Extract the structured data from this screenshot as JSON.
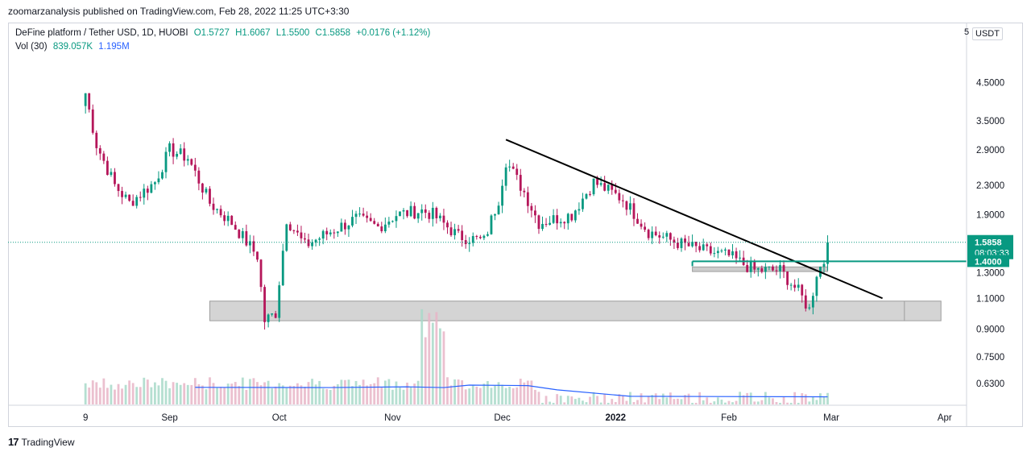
{
  "header": {
    "publisher": "zoomarzanalysis published on TradingView.com, Feb 28, 2022 11:25 UTC+3:30"
  },
  "legend": {
    "symbol": "DeFine platform / Tether USD, 1D, HUOBI",
    "open": "O1.5727",
    "high": "H1.6067",
    "low": "L1.5500",
    "close": "C1.5858",
    "change": "+0.0176 (+1.12%)",
    "vol_label": "Vol (30)",
    "vol_value": "839.057K",
    "vol_ma": "1.195M"
  },
  "currency_button": "USDT",
  "currency_prefix": "5",
  "footer": {
    "brand": "TradingView",
    "logo": "tradingview-logo-icon"
  },
  "colors": {
    "up": "#089981",
    "down": "#b5165a",
    "trendline": "#000000",
    "zone": "#cccccc",
    "resistance": "#089981",
    "vol_ma": "#2962ff"
  },
  "chart_data": {
    "type": "candlestick",
    "y_scale": "log",
    "ylim": [
      0.55,
      5.2
    ],
    "y_ticks": [
      "4.5000",
      "3.5000",
      "2.9000",
      "2.3000",
      "1.9000",
      "1.3000",
      "1.1000",
      "0.9000",
      "0.7500",
      "0.6300"
    ],
    "y_tick_values": [
      4.5,
      3.5,
      2.9,
      2.3,
      1.9,
      1.3,
      1.1,
      0.9,
      0.75,
      0.63
    ],
    "x_ticks": [
      "9",
      "Sep",
      "Oct",
      "Nov",
      "Dec",
      "2022",
      "Feb",
      "Mar",
      "Apr"
    ],
    "x_tick_dates": [
      "2021-08-09",
      "2021-09-01",
      "2021-10-01",
      "2021-11-01",
      "2021-12-01",
      "2022-01-01",
      "2022-02-01",
      "2022-03-01",
      "2022-04-01"
    ],
    "x_range": [
      "2021-08-05",
      "2022-04-07"
    ],
    "last_price": "1.5858",
    "countdown": "08:03:33",
    "level_label": "1.4000",
    "price_path": [
      [
        "2021-08-09",
        4.2
      ],
      [
        "2021-08-12",
        3.0
      ],
      [
        "2021-08-17",
        2.3
      ],
      [
        "2021-08-21",
        2.05
      ],
      [
        "2021-08-28",
        2.35
      ],
      [
        "2021-09-01",
        2.9
      ],
      [
        "2021-09-06",
        2.75
      ],
      [
        "2021-09-12",
        2.05
      ],
      [
        "2021-09-18",
        1.8
      ],
      [
        "2021-09-25",
        1.45
      ],
      [
        "2021-09-27",
        0.95
      ],
      [
        "2021-09-30",
        1.0
      ],
      [
        "2021-10-03",
        1.85
      ],
      [
        "2021-10-08",
        1.55
      ],
      [
        "2021-10-15",
        1.7
      ],
      [
        "2021-10-22",
        1.85
      ],
      [
        "2021-10-28",
        1.75
      ],
      [
        "2021-11-02",
        1.9
      ],
      [
        "2021-11-09",
        1.95
      ],
      [
        "2021-11-12",
        1.9
      ],
      [
        "2021-11-19",
        1.65
      ],
      [
        "2021-11-26",
        1.6
      ],
      [
        "2021-11-30",
        2.1
      ],
      [
        "2021-12-02",
        2.7
      ],
      [
        "2021-12-07",
        2.2
      ],
      [
        "2021-12-11",
        1.8
      ],
      [
        "2021-12-20",
        1.9
      ],
      [
        "2021-12-26",
        2.35
      ],
      [
        "2022-01-03",
        2.1
      ],
      [
        "2022-01-10",
        1.7
      ],
      [
        "2022-01-18",
        1.58
      ],
      [
        "2022-01-25",
        1.5
      ],
      [
        "2022-02-01",
        1.45
      ],
      [
        "2022-02-08",
        1.32
      ],
      [
        "2022-02-15",
        1.32
      ],
      [
        "2022-02-20",
        1.15
      ],
      [
        "2022-02-23",
        1.02
      ],
      [
        "2022-02-25",
        1.3
      ],
      [
        "2022-02-27",
        1.4
      ],
      [
        "2022-02-28",
        1.5858
      ]
    ],
    "trendline": {
      "start": [
        "2021-12-02",
        3.1
      ],
      "end": [
        "2022-03-15",
        1.1
      ]
    },
    "demand_zone": {
      "from": "2021-09-12",
      "to": "2022-03-31",
      "low": 0.95,
      "high": 1.08
    },
    "small_zone": {
      "from": "2022-01-22",
      "to": "2022-02-28",
      "low": 1.31,
      "high": 1.35
    },
    "resistance": {
      "from": "2022-01-22",
      "to": "2022-03-31",
      "value": 1.4
    },
    "volume_ma_path": [
      [
        "2021-09-08",
        0.615
      ],
      [
        "2021-10-15",
        0.614
      ],
      [
        "2021-11-05",
        0.617
      ],
      [
        "2021-11-15",
        0.614
      ],
      [
        "2021-11-22",
        0.624
      ],
      [
        "2021-12-08",
        0.622
      ],
      [
        "2021-12-16",
        0.605
      ],
      [
        "2022-01-05",
        0.58
      ],
      [
        "2022-02-28",
        0.578
      ]
    ]
  }
}
